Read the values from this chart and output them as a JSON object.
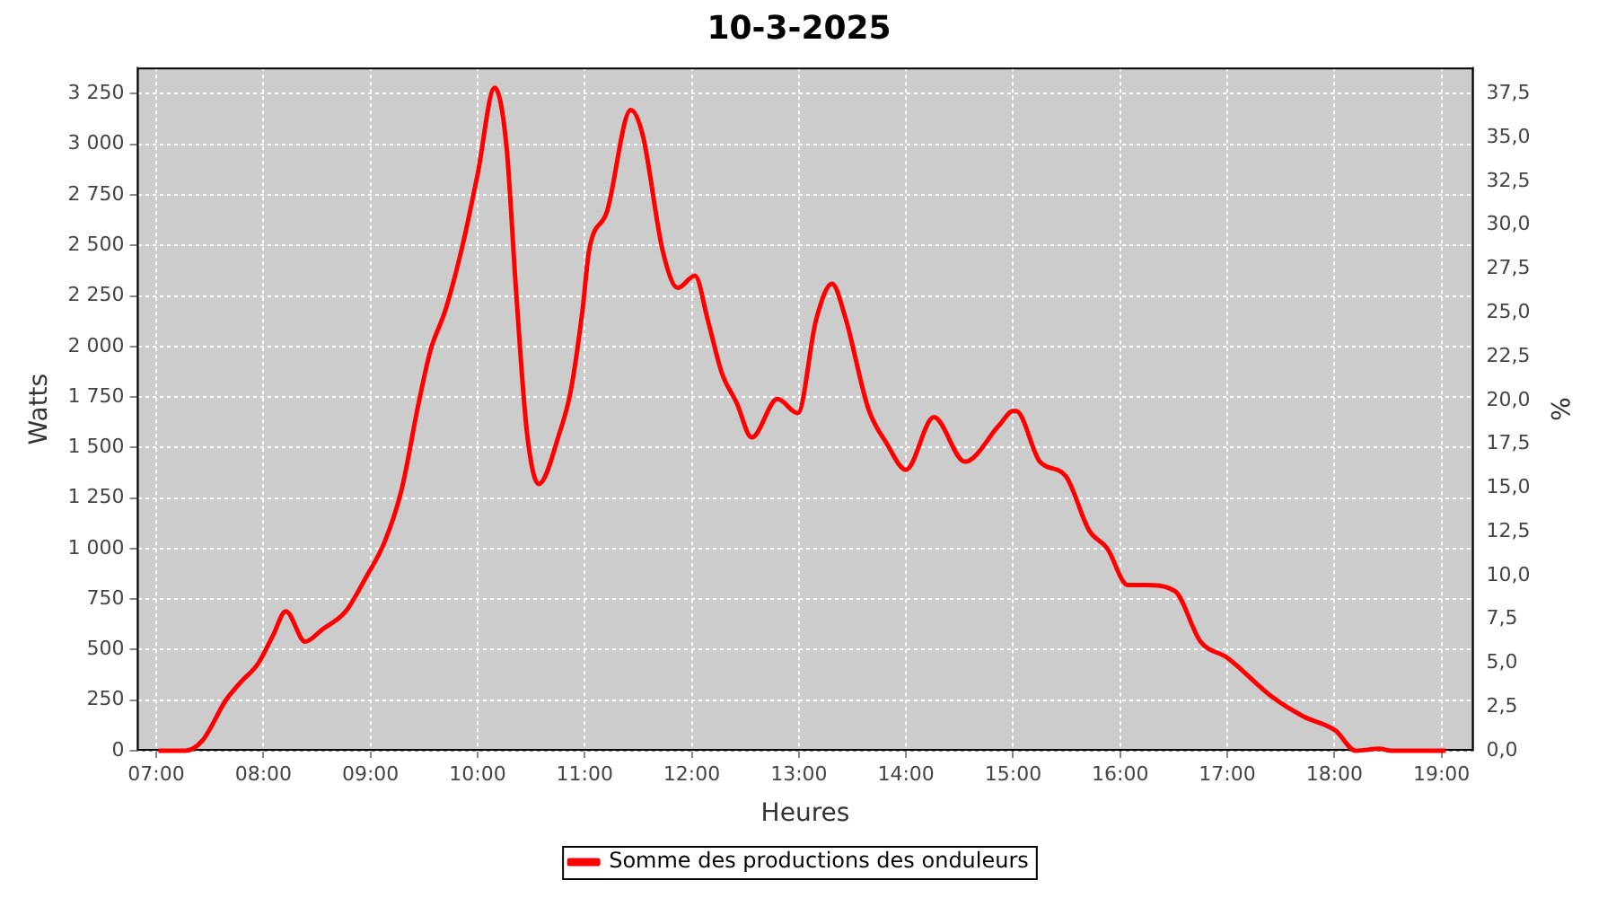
{
  "chart_data": {
    "type": "line",
    "title": "10-3-2025",
    "xlabel": "Heures",
    "ylabel": "Watts",
    "y2label": "%",
    "x": [
      7.02,
      7.27,
      7.43,
      7.65,
      7.79,
      7.95,
      8.09,
      8.21,
      8.39,
      8.55,
      8.77,
      8.96,
      9.13,
      9.29,
      9.45,
      9.56,
      9.7,
      9.86,
      10.0,
      10.16,
      10.27,
      10.36,
      10.46,
      10.57,
      10.77,
      10.87,
      10.98,
      11.04,
      11.21,
      11.43,
      11.54,
      11.73,
      11.87,
      12.03,
      12.15,
      12.28,
      12.42,
      12.56,
      12.8,
      12.99,
      13.16,
      13.31,
      13.43,
      13.65,
      13.82,
      14.0,
      14.26,
      14.55,
      14.87,
      15.0,
      15.03,
      15.25,
      15.49,
      15.71,
      15.88,
      16.07,
      16.23,
      16.51,
      16.75,
      17.0,
      17.41,
      17.71,
      18.01,
      18.2,
      18.42,
      18.53,
      19.04
    ],
    "series": [
      {
        "name": "Somme des productions des onduleurs",
        "color": "#ff0000",
        "values": [
          0,
          0,
          50,
          250,
          340,
          430,
          570,
          690,
          540,
          600,
          690,
          860,
          1030,
          1290,
          1720,
          1980,
          2180,
          2500,
          2850,
          3280,
          2990,
          2270,
          1580,
          1320,
          1580,
          1780,
          2180,
          2470,
          2670,
          3170,
          3050,
          2470,
          2290,
          2350,
          2130,
          1870,
          1720,
          1550,
          1740,
          1670,
          2130,
          2310,
          2150,
          1690,
          1520,
          1390,
          1650,
          1430,
          1610,
          1680,
          1680,
          1430,
          1360,
          1090,
          1000,
          820,
          820,
          790,
          540,
          460,
          270,
          170,
          100,
          0,
          10,
          0,
          0
        ]
      }
    ],
    "xlim": [
      6.82,
      19.3
    ],
    "xticks": [
      {
        "value": 7,
        "label": "07:00"
      },
      {
        "value": 8,
        "label": "08:00"
      },
      {
        "value": 9,
        "label": "09:00"
      },
      {
        "value": 10,
        "label": "10:00"
      },
      {
        "value": 11,
        "label": "11:00"
      },
      {
        "value": 12,
        "label": "12:00"
      },
      {
        "value": 13,
        "label": "13:00"
      },
      {
        "value": 14,
        "label": "14:00"
      },
      {
        "value": 15,
        "label": "15:00"
      },
      {
        "value": 16,
        "label": "16:00"
      },
      {
        "value": 17,
        "label": "17:00"
      },
      {
        "value": 18,
        "label": "18:00"
      },
      {
        "value": 19,
        "label": "19:00"
      }
    ],
    "ylim": [
      0,
      3380
    ],
    "yticks": [
      0,
      250,
      500,
      750,
      {
        "value": 1000,
        "label": "1 000"
      },
      {
        "value": 1250,
        "label": "1 250"
      },
      {
        "value": 1500,
        "label": "1 500"
      },
      {
        "value": 1750,
        "label": "1 750"
      },
      {
        "value": 2000,
        "label": "2 000"
      },
      {
        "value": 2250,
        "label": "2 250"
      },
      {
        "value": 2500,
        "label": "2 500"
      },
      {
        "value": 2750,
        "label": "2 750"
      },
      {
        "value": 3000,
        "label": "3 000"
      },
      {
        "value": 3250,
        "label": "3 250"
      }
    ],
    "y2lim": [
      0,
      39.0
    ],
    "y2ticks": [
      {
        "value": 0,
        "label": "0,0"
      },
      {
        "value": 2.5,
        "label": "2,5"
      },
      {
        "value": 5,
        "label": "5,0"
      },
      {
        "value": 7.5,
        "label": "7,5"
      },
      {
        "value": 10,
        "label": "10,0"
      },
      {
        "value": 12.5,
        "label": "12,5"
      },
      {
        "value": 15,
        "label": "15,0"
      },
      {
        "value": 17.5,
        "label": "17,5"
      },
      {
        "value": 20,
        "label": "20,0"
      },
      {
        "value": 22.5,
        "label": "22,5"
      },
      {
        "value": 25,
        "label": "25,0"
      },
      {
        "value": 27.5,
        "label": "27,5"
      },
      {
        "value": 30,
        "label": "30,0"
      },
      {
        "value": 32.5,
        "label": "32,5"
      },
      {
        "value": 35,
        "label": "35,0"
      },
      {
        "value": 37.5,
        "label": "37,5"
      }
    ],
    "grid": true,
    "legend": "bottom",
    "marker": "none",
    "line_style": "solid"
  }
}
